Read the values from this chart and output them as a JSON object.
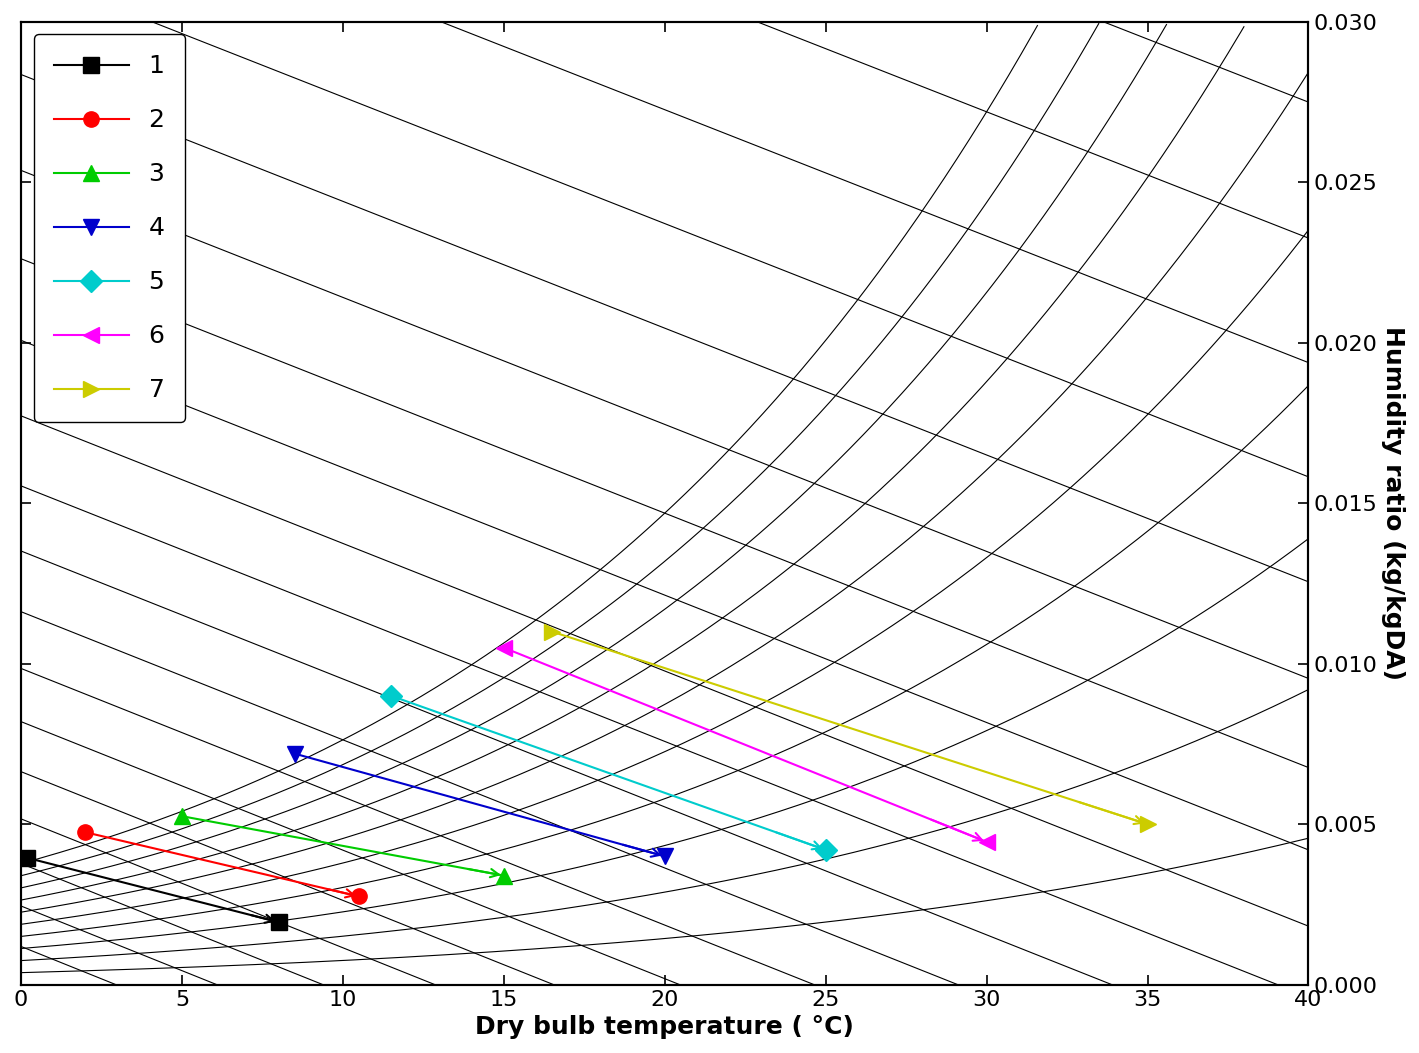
{
  "xlabel": "Dry bulb temperature ( °C)",
  "ylabel": "Humidity ratio (kg/kgDA)",
  "xlim": [
    0,
    40
  ],
  "ylim": [
    0.0,
    0.03
  ],
  "xticks": [
    0,
    5,
    10,
    15,
    20,
    25,
    30,
    35,
    40
  ],
  "yticks": [
    0.0,
    0.005,
    0.01,
    0.015,
    0.02,
    0.025,
    0.03
  ],
  "series": [
    {
      "label": "1",
      "color": "#000000",
      "marker": "s",
      "markersize": 11,
      "points": [
        [
          0.2,
          0.00395
        ],
        [
          8.0,
          0.00195
        ]
      ]
    },
    {
      "label": "2",
      "color": "#ff0000",
      "marker": "o",
      "markersize": 11,
      "points": [
        [
          2.0,
          0.00475
        ],
        [
          10.5,
          0.00275
        ]
      ]
    },
    {
      "label": "3",
      "color": "#00cc00",
      "marker": "^",
      "markersize": 11,
      "points": [
        [
          5.0,
          0.00525
        ],
        [
          15.0,
          0.0034
        ]
      ]
    },
    {
      "label": "4",
      "color": "#0000cc",
      "marker": "v",
      "markersize": 11,
      "points": [
        [
          8.5,
          0.0072
        ],
        [
          20.0,
          0.004
        ]
      ]
    },
    {
      "label": "5",
      "color": "#00cccc",
      "marker": "D",
      "markersize": 11,
      "points": [
        [
          11.5,
          0.009
        ],
        [
          25.0,
          0.0042
        ]
      ]
    },
    {
      "label": "6",
      "color": "#ff00ff",
      "marker": "<",
      "markersize": 12,
      "points": [
        [
          15.0,
          0.0105
        ],
        [
          30.0,
          0.00445
        ]
      ]
    },
    {
      "label": "7",
      "color": "#cccc00",
      "marker": ">",
      "markersize": 12,
      "points": [
        [
          16.5,
          0.011
        ],
        [
          35.0,
          0.005
        ]
      ]
    }
  ],
  "rh_lines": [
    10,
    20,
    30,
    40,
    50,
    60,
    70,
    80,
    90,
    100
  ],
  "wb_temps": [
    -4,
    -2,
    0,
    2,
    4,
    6,
    8,
    10,
    12,
    14,
    16,
    18,
    20,
    22,
    24,
    26,
    28,
    30,
    32
  ],
  "legend_loc": "upper left",
  "legend_fontsize": 18,
  "tick_fontsize": 16,
  "label_fontsize": 18
}
